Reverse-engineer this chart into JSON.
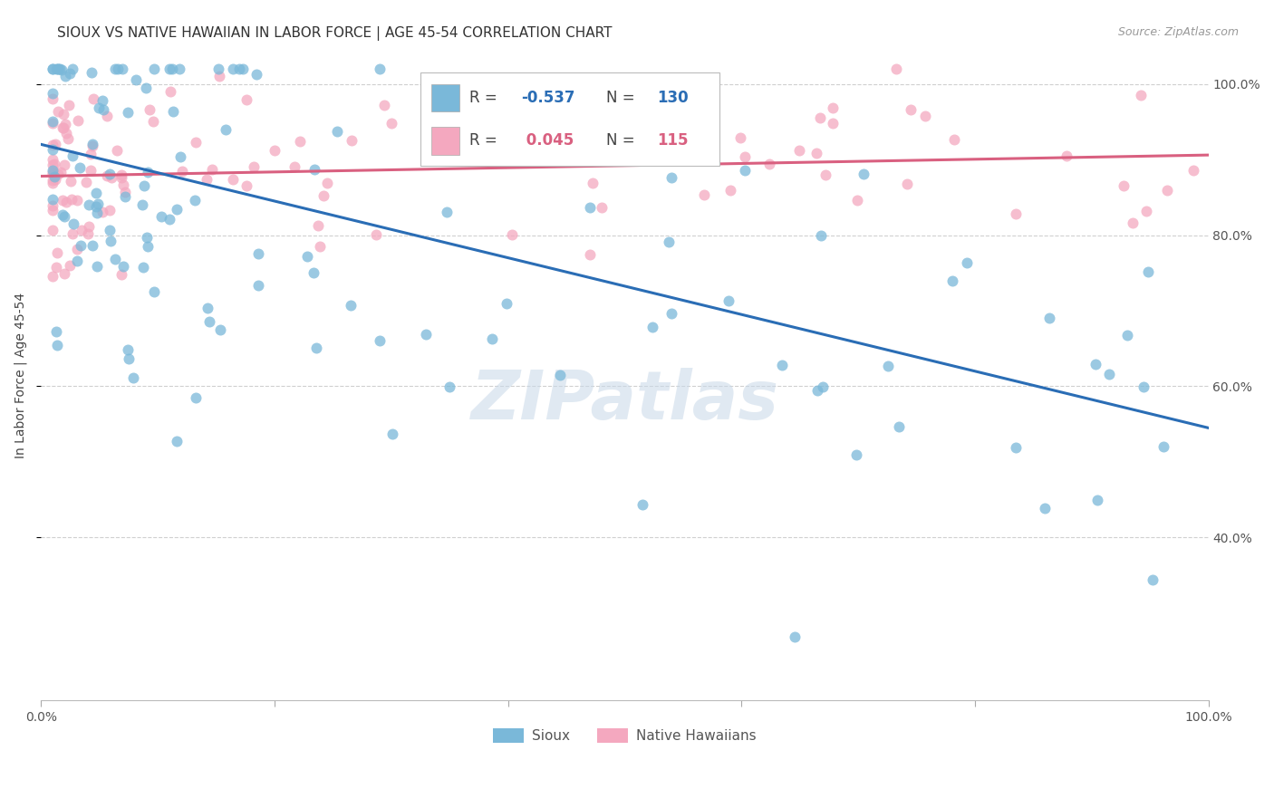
{
  "title": "SIOUX VS NATIVE HAWAIIAN IN LABOR FORCE | AGE 45-54 CORRELATION CHART",
  "source_text": "Source: ZipAtlas.com",
  "ylabel": "In Labor Force | Age 45-54",
  "xlim": [
    0.0,
    1.0
  ],
  "ylim": [
    0.185,
    1.045
  ],
  "blue_color": "#7ab8d9",
  "pink_color": "#f4a8bf",
  "blue_line_color": "#2a6db5",
  "pink_line_color": "#d96080",
  "legend_r_blue": "-0.537",
  "legend_n_blue": "130",
  "legend_r_pink": "0.045",
  "legend_n_pink": "115",
  "legend_label_blue": "Sioux",
  "legend_label_pink": "Native Hawaiians",
  "watermark": "ZIPatlas",
  "blue_intercept": 0.92,
  "blue_slope": -0.375,
  "pink_intercept": 0.878,
  "pink_slope": 0.028
}
